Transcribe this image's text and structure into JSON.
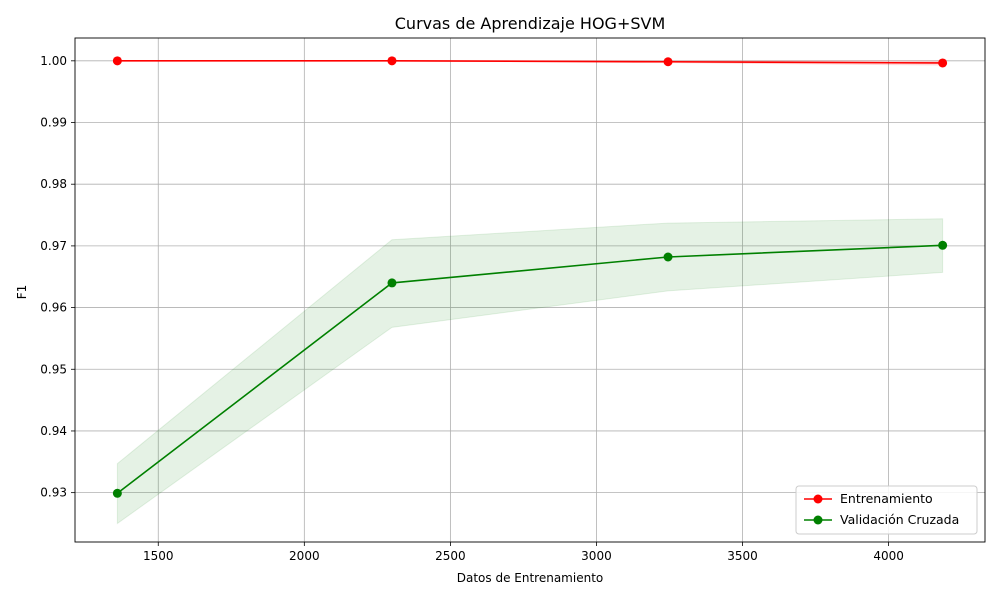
{
  "chart_data": {
    "type": "line",
    "title": "Curvas de Aprendizaje HOG+SVM",
    "xlabel": "Datos de Entrenamiento",
    "ylabel": "F1",
    "x": [
      1360,
      2300,
      3245,
      4185
    ],
    "xlim": [
      1215,
      4330
    ],
    "ylim": [
      0.922,
      1.0037
    ],
    "x_ticks": [
      1500,
      2000,
      2500,
      3000,
      3500,
      4000
    ],
    "x_tick_labels": [
      "1500",
      "2000",
      "2500",
      "3000",
      "3500",
      "4000"
    ],
    "y_ticks": [
      0.93,
      0.94,
      0.95,
      0.96,
      0.97,
      0.98,
      0.99,
      1.0
    ],
    "y_tick_labels": [
      "0.93",
      "0.94",
      "0.95",
      "0.96",
      "0.97",
      "0.98",
      "0.99",
      "1.00"
    ],
    "grid": true,
    "legend_position": "lower-right",
    "series": [
      {
        "name": "Entrenamiento",
        "color": "#ff0000",
        "values": [
          1.0,
          1.0,
          0.99985,
          0.99965
        ],
        "band_upper": [
          1.0,
          1.0,
          1.0,
          1.0
        ],
        "band_lower": [
          1.0,
          1.0,
          0.9997,
          0.9993
        ]
      },
      {
        "name": "Validación Cruzada",
        "color": "#008000",
        "band_color": "#008000",
        "values": [
          0.9299,
          0.964,
          0.9682,
          0.9701
        ],
        "band_upper": [
          0.9347,
          0.971,
          0.9737,
          0.9744
        ],
        "band_lower": [
          0.925,
          0.9568,
          0.9627,
          0.9657
        ]
      }
    ]
  }
}
